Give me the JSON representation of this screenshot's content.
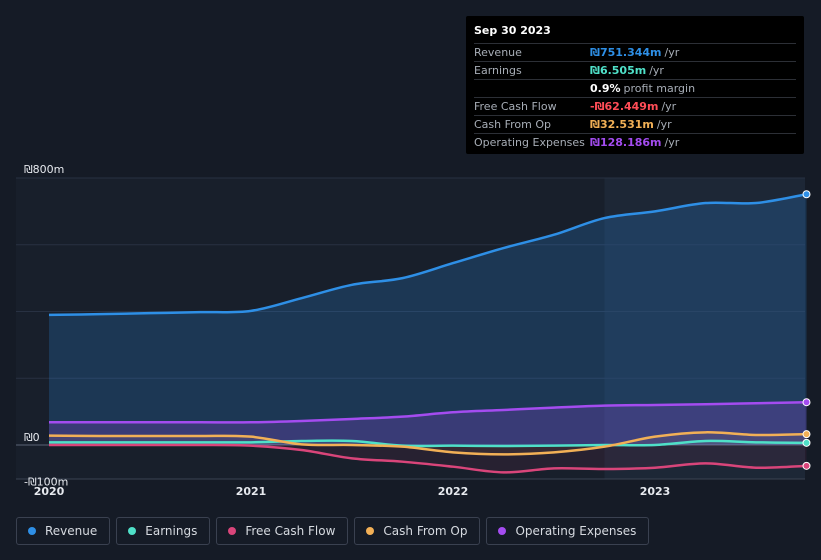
{
  "tooltip": {
    "date": "Sep 30 2023",
    "rows": [
      {
        "label": "Revenue",
        "value": "₪751.344m",
        "unit": "/yr",
        "color": "#2e8fe6"
      },
      {
        "label": "Earnings",
        "value": "₪6.505m",
        "unit": "/yr",
        "color": "#4fe0c8"
      },
      {
        "label": "",
        "value": "0.9%",
        "unit": "profit margin",
        "color": "#ffffff"
      },
      {
        "label": "Free Cash Flow",
        "value": "-₪62.449m",
        "unit": "/yr",
        "color": "#ff4d57"
      },
      {
        "label": "Cash From Op",
        "value": "₪32.531m",
        "unit": "/yr",
        "color": "#f2b056"
      },
      {
        "label": "Operating Expenses",
        "value": "₪128.186m",
        "unit": "/yr",
        "color": "#a44cf0"
      }
    ]
  },
  "legend": [
    {
      "label": "Revenue",
      "color": "#2e8fe6"
    },
    {
      "label": "Earnings",
      "color": "#4fe0c8"
    },
    {
      "label": "Free Cash Flow",
      "color": "#d9457a"
    },
    {
      "label": "Cash From Op",
      "color": "#f2b056"
    },
    {
      "label": "Operating Expenses",
      "color": "#a44cf0"
    }
  ],
  "chart_data": {
    "type": "area",
    "title": "",
    "ylim": [
      -100,
      800
    ],
    "y_tick_labels": [
      "₪800m",
      "₪0",
      "-₪100m"
    ],
    "x_tick_labels": [
      "2020",
      "2021",
      "2022",
      "2023"
    ],
    "highlight_start": 2022.75,
    "x": [
      2020.0,
      2020.25,
      2020.5,
      2020.75,
      2021.0,
      2021.25,
      2021.5,
      2021.75,
      2022.0,
      2022.25,
      2022.5,
      2022.75,
      2023.0,
      2023.25,
      2023.5,
      2023.75
    ],
    "series": [
      {
        "name": "Revenue",
        "color": "#2e8fe6",
        "values": [
          390,
          392,
          395,
          398,
          402,
          440,
          480,
          500,
          545,
          590,
          630,
          680,
          700,
          725,
          725,
          751.344
        ]
      },
      {
        "name": "Earnings",
        "color": "#4fe0c8",
        "values": [
          8,
          8,
          8,
          8,
          8,
          12,
          12,
          -2,
          -2,
          -3,
          -2,
          0,
          0,
          12,
          8,
          6.505
        ]
      },
      {
        "name": "Free Cash Flow",
        "color": "#d9457a",
        "values": [
          0,
          0,
          0,
          0,
          -2,
          -15,
          -40,
          -50,
          -65,
          -82,
          -70,
          -72,
          -68,
          -55,
          -68,
          -62.449
        ]
      },
      {
        "name": "Cash From Op",
        "color": "#f2b056",
        "values": [
          28,
          27,
          27,
          27,
          25,
          2,
          0,
          -5,
          -22,
          -28,
          -22,
          -5,
          25,
          38,
          30,
          32.531
        ]
      },
      {
        "name": "Operating Expenses",
        "color": "#a44cf0",
        "values": [
          68,
          68,
          68,
          68,
          68,
          72,
          78,
          85,
          98,
          105,
          112,
          118,
          120,
          122,
          125,
          128.186
        ]
      }
    ]
  }
}
